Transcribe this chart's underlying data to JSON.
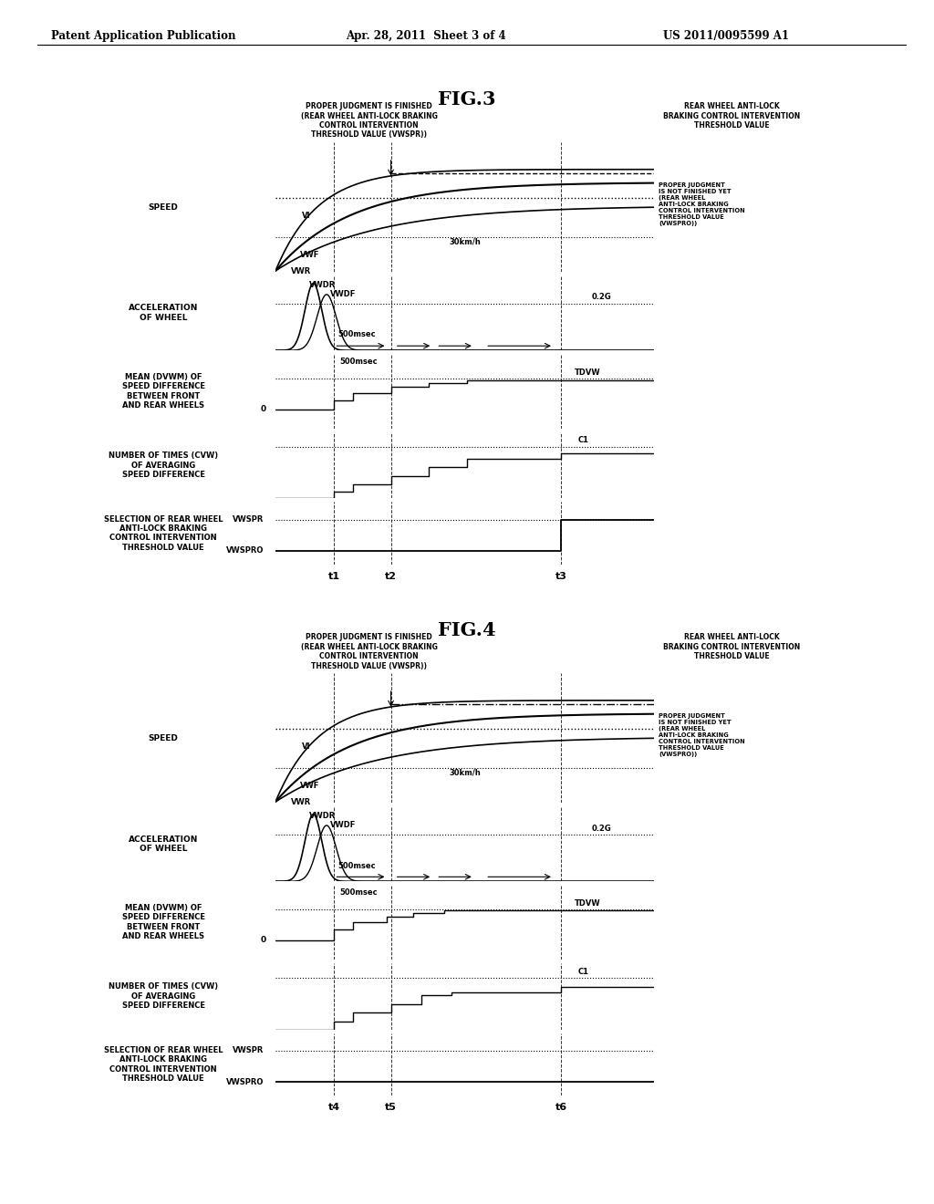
{
  "bg_color": "#ffffff",
  "header_left": "Patent Application Publication",
  "header_center": "Apr. 28, 2011  Sheet 3 of 4",
  "header_right": "US 2011/0095599 A1",
  "fig3_title": "FIG.3",
  "fig4_title": "FIG.4",
  "ann_left": "PROPER JUDGMENT IS FINISHED\n(REAR WHEEL ANTI-LOCK BRAKING\nCONTROL INTERVENTION\nTHRESHOLD VALUE (VWSPR))",
  "ann_right_top": "REAR WHEEL ANTI-LOCK\nBRAKING CONTROL INTERVENTION\nTHRESHOLD VALUE",
  "ann_right_bot": "PROPER JUDGMENT\nIS NOT FINISHED YET\n(REAR WHEEL\nANTI-LOCK BRAKING\nCONTROL INTERVENTION\nTHRESHOLD VALUE\n(VWSPRO))",
  "lbl_speed": "SPEED",
  "lbl_accel": "ACCELERATION\nOF WHEEL",
  "lbl_mean": "MEAN (DVWM) OF\nSPEED DIFFERENCE\nBETWEEN FRONT\nAND REAR WHEELS",
  "lbl_count": "NUMBER OF TIMES (CVW)\nOF AVERAGING\nSPEED DIFFERENCE",
  "lbl_sel": "SELECTION OF REAR WHEEL\nANTI-LOCK BRAKING\nCONTROL INTERVENTION\nTHRESHOLD VALUE",
  "t_fig3": [
    "t1",
    "t2",
    "t3"
  ],
  "t_fig4": [
    "t4",
    "t5",
    "t6"
  ]
}
